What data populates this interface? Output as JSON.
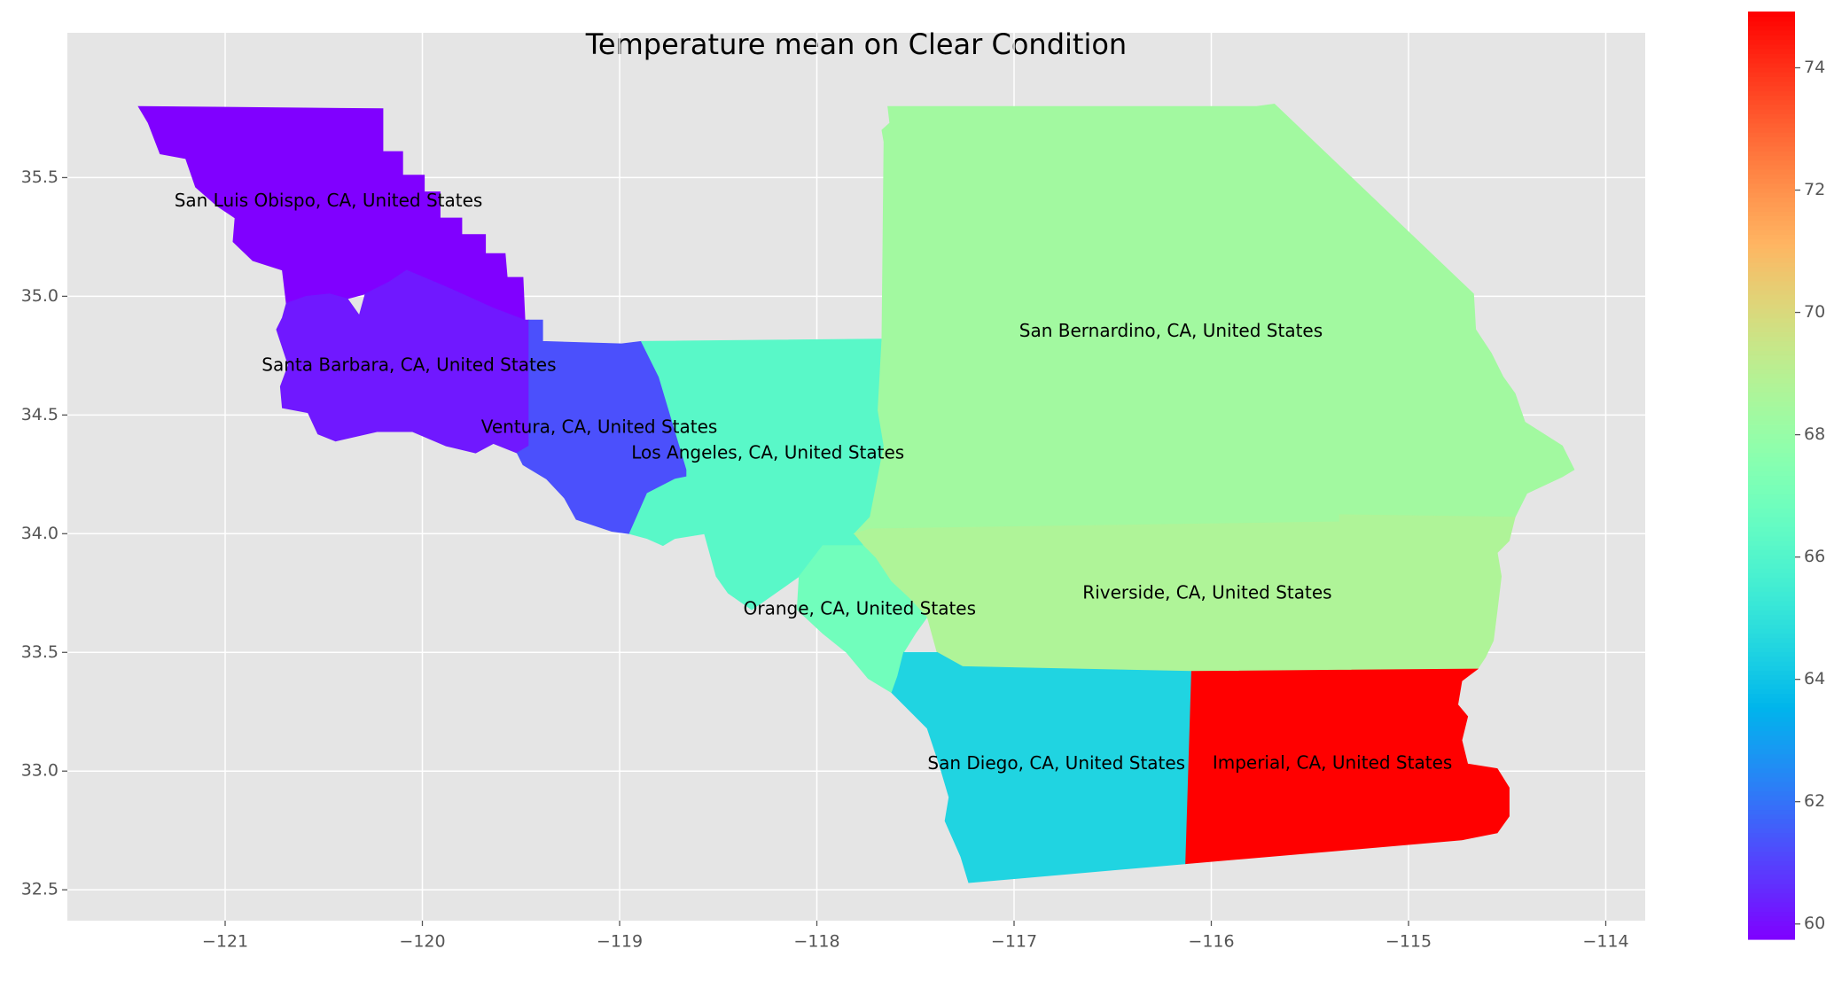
{
  "chart_data": {
    "type": "choropleth",
    "title": "Temperature mean on Clear Condition",
    "colormap": "rainbow",
    "grid": true,
    "xlim": [
      -121.8,
      -113.8
    ],
    "ylim": [
      32.37,
      36.11
    ],
    "xticks": [
      {
        "value": -121,
        "label": "−121"
      },
      {
        "value": -120,
        "label": "−120"
      },
      {
        "value": -119,
        "label": "−119"
      },
      {
        "value": -118,
        "label": "−118"
      },
      {
        "value": -117,
        "label": "−117"
      },
      {
        "value": -116,
        "label": "−116"
      },
      {
        "value": -115,
        "label": "−115"
      },
      {
        "value": -114,
        "label": "−114"
      }
    ],
    "yticks": [
      32.5,
      {
        "value": 33,
        "label": "33.0"
      },
      33.5,
      {
        "value": 34,
        "label": "34.0"
      },
      34.5,
      {
        "value": 35,
        "label": "35.0"
      },
      35.5
    ],
    "colorbar_lim": [
      59.75,
      74.92
    ],
    "colorbar_ticks": [
      60,
      62,
      64,
      66,
      68,
      70,
      72,
      74
    ],
    "regions": [
      {
        "name": "San Luis Obispo, CA, United States",
        "value": 59.75,
        "boundary": [
          [
            -121.44,
            35.8
          ],
          [
            -120.2,
            35.79
          ],
          [
            -120.2,
            35.61
          ],
          [
            -120.1,
            35.61
          ],
          [
            -120.1,
            35.51
          ],
          [
            -119.99,
            35.51
          ],
          [
            -119.99,
            35.44
          ],
          [
            -119.91,
            35.44
          ],
          [
            -119.91,
            35.33
          ],
          [
            -119.8,
            35.33
          ],
          [
            -119.8,
            35.26
          ],
          [
            -119.68,
            35.26
          ],
          [
            -119.68,
            35.18
          ],
          [
            -119.58,
            35.18
          ],
          [
            -119.57,
            35.08
          ],
          [
            -119.49,
            35.08
          ],
          [
            -119.48,
            34.9
          ],
          [
            -119.64,
            34.95
          ],
          [
            -119.88,
            35.04
          ],
          [
            -120.08,
            35.11
          ],
          [
            -120.17,
            35.06
          ],
          [
            -120.29,
            35.01
          ],
          [
            -120.38,
            34.99
          ],
          [
            -120.47,
            35.01
          ],
          [
            -120.59,
            35.0
          ],
          [
            -120.69,
            34.97
          ],
          [
            -120.71,
            35.11
          ],
          [
            -120.86,
            35.15
          ],
          [
            -120.96,
            35.23
          ],
          [
            -120.95,
            35.33
          ],
          [
            -121.04,
            35.38
          ],
          [
            -121.15,
            35.46
          ],
          [
            -121.2,
            35.58
          ],
          [
            -121.33,
            35.6
          ],
          [
            -121.39,
            35.73
          ]
        ]
      },
      {
        "name": "Santa Barbara, CA, United States",
        "value": 60.2,
        "boundary": [
          [
            -120.69,
            34.97
          ],
          [
            -120.59,
            35.0
          ],
          [
            -120.47,
            35.01
          ],
          [
            -120.38,
            34.99
          ],
          [
            -120.32,
            34.92
          ],
          [
            -120.29,
            35.01
          ],
          [
            -120.17,
            35.06
          ],
          [
            -120.08,
            35.11
          ],
          [
            -119.88,
            35.04
          ],
          [
            -119.64,
            34.95
          ],
          [
            -119.48,
            34.9
          ],
          [
            -119.46,
            34.9
          ],
          [
            -119.46,
            34.37
          ],
          [
            -119.52,
            34.34
          ],
          [
            -119.64,
            34.38
          ],
          [
            -119.73,
            34.34
          ],
          [
            -119.88,
            34.37
          ],
          [
            -120.05,
            34.43
          ],
          [
            -120.23,
            34.43
          ],
          [
            -120.44,
            34.39
          ],
          [
            -120.53,
            34.42
          ],
          [
            -120.58,
            34.51
          ],
          [
            -120.71,
            34.53
          ],
          [
            -120.72,
            34.62
          ],
          [
            -120.68,
            34.71
          ],
          [
            -120.74,
            34.86
          ],
          [
            -120.71,
            34.91
          ]
        ]
      },
      {
        "name": "Ventura, CA, United States",
        "value": 61.3,
        "boundary": [
          [
            -119.46,
            34.9
          ],
          [
            -119.39,
            34.9
          ],
          [
            -119.39,
            34.81
          ],
          [
            -118.99,
            34.8
          ],
          [
            -118.89,
            34.81
          ],
          [
            -118.8,
            34.66
          ],
          [
            -118.66,
            34.27
          ],
          [
            -118.66,
            34.24
          ],
          [
            -118.72,
            34.23
          ],
          [
            -118.86,
            34.17
          ],
          [
            -118.95,
            34.0
          ],
          [
            -119.04,
            34.01
          ],
          [
            -119.22,
            34.06
          ],
          [
            -119.28,
            34.15
          ],
          [
            -119.37,
            34.23
          ],
          [
            -119.49,
            34.29
          ],
          [
            -119.52,
            34.34
          ],
          [
            -119.46,
            34.37
          ]
        ]
      },
      {
        "name": "Los Angeles, CA, United States",
        "value": 66.2,
        "boundary": [
          [
            -118.89,
            34.81
          ],
          [
            -117.67,
            34.82
          ],
          [
            -117.69,
            34.52
          ],
          [
            -117.66,
            34.37
          ],
          [
            -117.73,
            34.07
          ],
          [
            -117.81,
            34.0
          ],
          [
            -117.76,
            33.95
          ],
          [
            -117.97,
            33.95
          ],
          [
            -118.09,
            33.82
          ],
          [
            -118.21,
            33.75
          ],
          [
            -118.33,
            33.68
          ],
          [
            -118.45,
            33.75
          ],
          [
            -118.51,
            33.82
          ],
          [
            -118.57,
            34.0
          ],
          [
            -118.72,
            33.98
          ],
          [
            -118.78,
            33.95
          ],
          [
            -118.86,
            33.98
          ],
          [
            -118.95,
            34.0
          ],
          [
            -118.86,
            34.17
          ],
          [
            -118.72,
            34.23
          ],
          [
            -118.66,
            34.24
          ],
          [
            -118.66,
            34.27
          ],
          [
            -118.8,
            34.66
          ]
        ]
      },
      {
        "name": "Orange, CA, United States",
        "value": 66.9,
        "boundary": [
          [
            -117.97,
            33.95
          ],
          [
            -117.76,
            33.95
          ],
          [
            -117.7,
            33.9
          ],
          [
            -117.62,
            33.8
          ],
          [
            -117.53,
            33.73
          ],
          [
            -117.44,
            33.65
          ],
          [
            -117.5,
            33.58
          ],
          [
            -117.56,
            33.5
          ],
          [
            -117.59,
            33.4
          ],
          [
            -117.62,
            33.33
          ],
          [
            -117.74,
            33.39
          ],
          [
            -117.85,
            33.5
          ],
          [
            -117.97,
            33.58
          ],
          [
            -118.1,
            33.68
          ],
          [
            -118.09,
            33.82
          ]
        ]
      },
      {
        "name": "San Bernardino, CA, United States",
        "value": 68.36,
        "boundary": [
          [
            -117.64,
            35.8
          ],
          [
            -115.77,
            35.8
          ],
          [
            -115.68,
            35.81
          ],
          [
            -114.67,
            35.01
          ],
          [
            -114.66,
            34.86
          ],
          [
            -114.58,
            34.76
          ],
          [
            -114.52,
            34.66
          ],
          [
            -114.46,
            34.59
          ],
          [
            -114.41,
            34.47
          ],
          [
            -114.22,
            34.37
          ],
          [
            -114.16,
            34.27
          ],
          [
            -114.22,
            34.24
          ],
          [
            -114.4,
            34.17
          ],
          [
            -114.46,
            34.07
          ],
          [
            -115.35,
            34.08
          ],
          [
            -115.35,
            34.05
          ],
          [
            -117.73,
            34.02
          ],
          [
            -117.81,
            34.0
          ],
          [
            -117.73,
            34.07
          ],
          [
            -117.66,
            34.37
          ],
          [
            -117.69,
            34.52
          ],
          [
            -117.67,
            34.82
          ],
          [
            -117.66,
            35.65
          ],
          [
            -117.67,
            35.7
          ],
          [
            -117.63,
            35.73
          ]
        ]
      },
      {
        "name": "Riverside, CA, United States",
        "value": 68.75,
        "boundary": [
          [
            -117.73,
            34.02
          ],
          [
            -115.35,
            34.05
          ],
          [
            -115.35,
            34.08
          ],
          [
            -114.46,
            34.07
          ],
          [
            -114.49,
            33.97
          ],
          [
            -114.55,
            33.92
          ],
          [
            -114.53,
            33.82
          ],
          [
            -114.55,
            33.68
          ],
          [
            -114.57,
            33.55
          ],
          [
            -114.61,
            33.48
          ],
          [
            -114.65,
            33.43
          ],
          [
            -116.1,
            33.42
          ],
          [
            -117.26,
            33.44
          ],
          [
            -117.39,
            33.5
          ],
          [
            -117.44,
            33.65
          ],
          [
            -117.53,
            33.73
          ],
          [
            -117.62,
            33.8
          ],
          [
            -117.7,
            33.9
          ],
          [
            -117.76,
            33.95
          ],
          [
            -117.81,
            34.0
          ]
        ]
      },
      {
        "name": "San Diego, CA, United States",
        "value": 64.49,
        "boundary": [
          [
            -117.56,
            33.5
          ],
          [
            -117.39,
            33.5
          ],
          [
            -117.26,
            33.44
          ],
          [
            -116.1,
            33.42
          ],
          [
            -116.13,
            32.61
          ],
          [
            -117.23,
            32.53
          ],
          [
            -117.27,
            32.64
          ],
          [
            -117.35,
            32.79
          ],
          [
            -117.33,
            32.89
          ],
          [
            -117.38,
            33.03
          ],
          [
            -117.44,
            33.18
          ],
          [
            -117.62,
            33.33
          ],
          [
            -117.59,
            33.4
          ]
        ]
      },
      {
        "name": "Imperial, CA, United States",
        "value": 74.92,
        "boundary": [
          [
            -116.1,
            33.42
          ],
          [
            -114.65,
            33.43
          ],
          [
            -114.73,
            33.38
          ],
          [
            -114.75,
            33.28
          ],
          [
            -114.7,
            33.23
          ],
          [
            -114.73,
            33.13
          ],
          [
            -114.7,
            33.03
          ],
          [
            -114.55,
            33.01
          ],
          [
            -114.49,
            32.93
          ],
          [
            -114.49,
            32.81
          ],
          [
            -114.55,
            32.74
          ],
          [
            -114.73,
            32.71
          ],
          [
            -116.13,
            32.61
          ]
        ]
      }
    ]
  }
}
